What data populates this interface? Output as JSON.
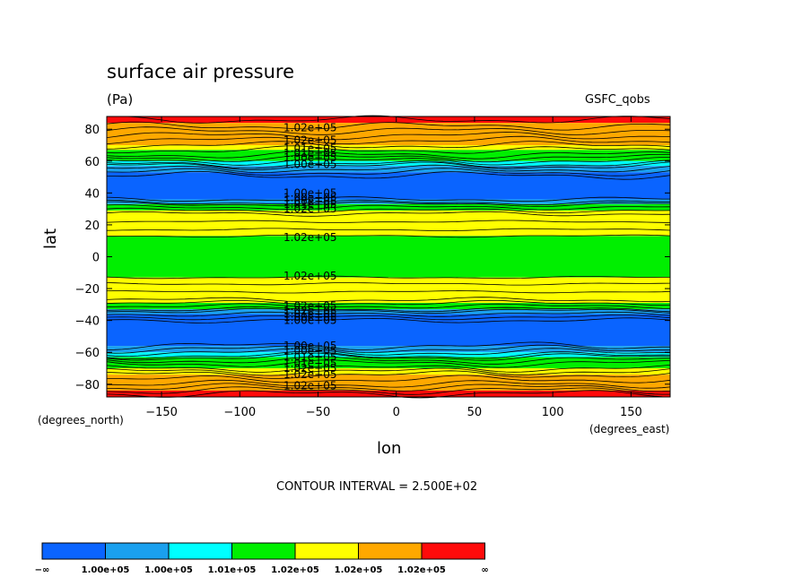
{
  "chart_data": {
    "type": "heatmap",
    "title": "surface air pressure",
    "units": "(Pa)",
    "source": "GSFC_qobs",
    "xlabel": "lon",
    "ylabel": "lat",
    "x_units": "(degrees_east)",
    "y_units": "(degrees_north)",
    "xlim": [
      -185,
      175
    ],
    "ylim": [
      -88,
      88
    ],
    "x_ticks": [
      -150,
      -100,
      -50,
      0,
      50,
      100,
      150
    ],
    "y_ticks": [
      -80,
      -60,
      -40,
      -20,
      0,
      20,
      40,
      60,
      80
    ],
    "contour_interval_text": "CONTOUR INTERVAL = 2.500E+02",
    "colors": [
      "#0a64ff",
      "#1aa0ee",
      "#00ffff",
      "#00ef00",
      "#ffff00",
      "#ffa800",
      "#ff0a0a"
    ],
    "colorbar_labels": [
      "−∞",
      "1.00e+05",
      "1.00e+05",
      "1.01e+05",
      "1.02e+05",
      "1.02e+05",
      "1.02e+05",
      "∞"
    ],
    "bands": [
      {
        "lat_from": 84,
        "lat_to": 88,
        "level": 6
      },
      {
        "lat_from": 70,
        "lat_to": 84,
        "level": 5
      },
      {
        "lat_from": 67,
        "lat_to": 70,
        "level": 4
      },
      {
        "lat_from": 60,
        "lat_to": 67,
        "level": 3
      },
      {
        "lat_from": 57,
        "lat_to": 60,
        "level": 2
      },
      {
        "lat_from": 53,
        "lat_to": 57,
        "level": 1
      },
      {
        "lat_from": 36,
        "lat_to": 53,
        "level": 0
      },
      {
        "lat_from": 33,
        "lat_to": 36,
        "level": 1
      },
      {
        "lat_from": 29,
        "lat_to": 33,
        "level": 3
      },
      {
        "lat_from": 13,
        "lat_to": 29,
        "level": 4
      },
      {
        "lat_from": -13,
        "lat_to": 13,
        "level": 3
      },
      {
        "lat_from": -29,
        "lat_to": -13,
        "level": 4
      },
      {
        "lat_from": -33,
        "lat_to": -29,
        "level": 3
      },
      {
        "lat_from": -36,
        "lat_to": -33,
        "level": 1
      },
      {
        "lat_from": -56,
        "lat_to": -36,
        "level": 0
      },
      {
        "lat_from": -60,
        "lat_to": -56,
        "level": 1
      },
      {
        "lat_from": -63,
        "lat_to": -60,
        "level": 2
      },
      {
        "lat_from": -70,
        "lat_to": -63,
        "level": 3
      },
      {
        "lat_from": -74,
        "lat_to": -70,
        "level": 4
      },
      {
        "lat_from": -84,
        "lat_to": -74,
        "level": 5
      },
      {
        "lat_from": -88,
        "lat_to": -84,
        "level": 6
      }
    ],
    "contour_lats": [
      86,
      82,
      79,
      76,
      73,
      70,
      67,
      64,
      62,
      60,
      58,
      57,
      55,
      53,
      51,
      36,
      34,
      33,
      31,
      29,
      27,
      22,
      17,
      13,
      -13,
      -17,
      -22,
      -27,
      -29,
      -31,
      -33,
      -34,
      -36,
      -38,
      -40,
      -56,
      -58,
      -60,
      -62,
      -63,
      -65,
      -67,
      -70,
      -72,
      -74,
      -77,
      -80,
      -82,
      -84,
      -86
    ],
    "contour_labels": [
      {
        "text": "1.02e+05",
        "lon": -55,
        "lat": 81
      },
      {
        "text": "1.02e+05",
        "lon": -55,
        "lat": 73
      },
      {
        "text": "1.01e+05",
        "lon": -55,
        "lat": 68
      },
      {
        "text": "1.01e+05",
        "lon": -55,
        "lat": 65
      },
      {
        "text": "1.00e+05",
        "lon": -55,
        "lat": 62
      },
      {
        "text": "1.00e+05",
        "lon": -55,
        "lat": 58
      },
      {
        "text": "1.00e+05",
        "lon": -55,
        "lat": 40
      },
      {
        "text": "1.00e+05",
        "lon": -55,
        "lat": 37
      },
      {
        "text": "1.00e+05",
        "lon": -55,
        "lat": 35
      },
      {
        "text": "1.01e+05",
        "lon": -55,
        "lat": 33
      },
      {
        "text": "1.02e+05",
        "lon": -55,
        "lat": 30
      },
      {
        "text": "1.02e+05",
        "lon": -55,
        "lat": 12
      },
      {
        "text": "1.02e+05",
        "lon": -55,
        "lat": -12
      },
      {
        "text": "1.02e+05",
        "lon": -55,
        "lat": -31
      },
      {
        "text": "1.02e+05",
        "lon": -55,
        "lat": -34
      },
      {
        "text": "1.01e+05",
        "lon": -55,
        "lat": -36
      },
      {
        "text": "1.00e+05",
        "lon": -55,
        "lat": -38
      },
      {
        "text": "1.00e+05",
        "lon": -55,
        "lat": -40
      },
      {
        "text": "1.00e+05",
        "lon": -55,
        "lat": -56
      },
      {
        "text": "1.00e+05",
        "lon": -55,
        "lat": -59
      },
      {
        "text": "1.01e+05",
        "lon": -55,
        "lat": -63
      },
      {
        "text": "1.01e+05",
        "lon": -55,
        "lat": -67
      },
      {
        "text": "1.02e+05",
        "lon": -55,
        "lat": -70
      },
      {
        "text": "1.02e+05",
        "lon": -55,
        "lat": -74
      },
      {
        "text": "1.02e+05",
        "lon": -55,
        "lat": -81
      }
    ]
  }
}
